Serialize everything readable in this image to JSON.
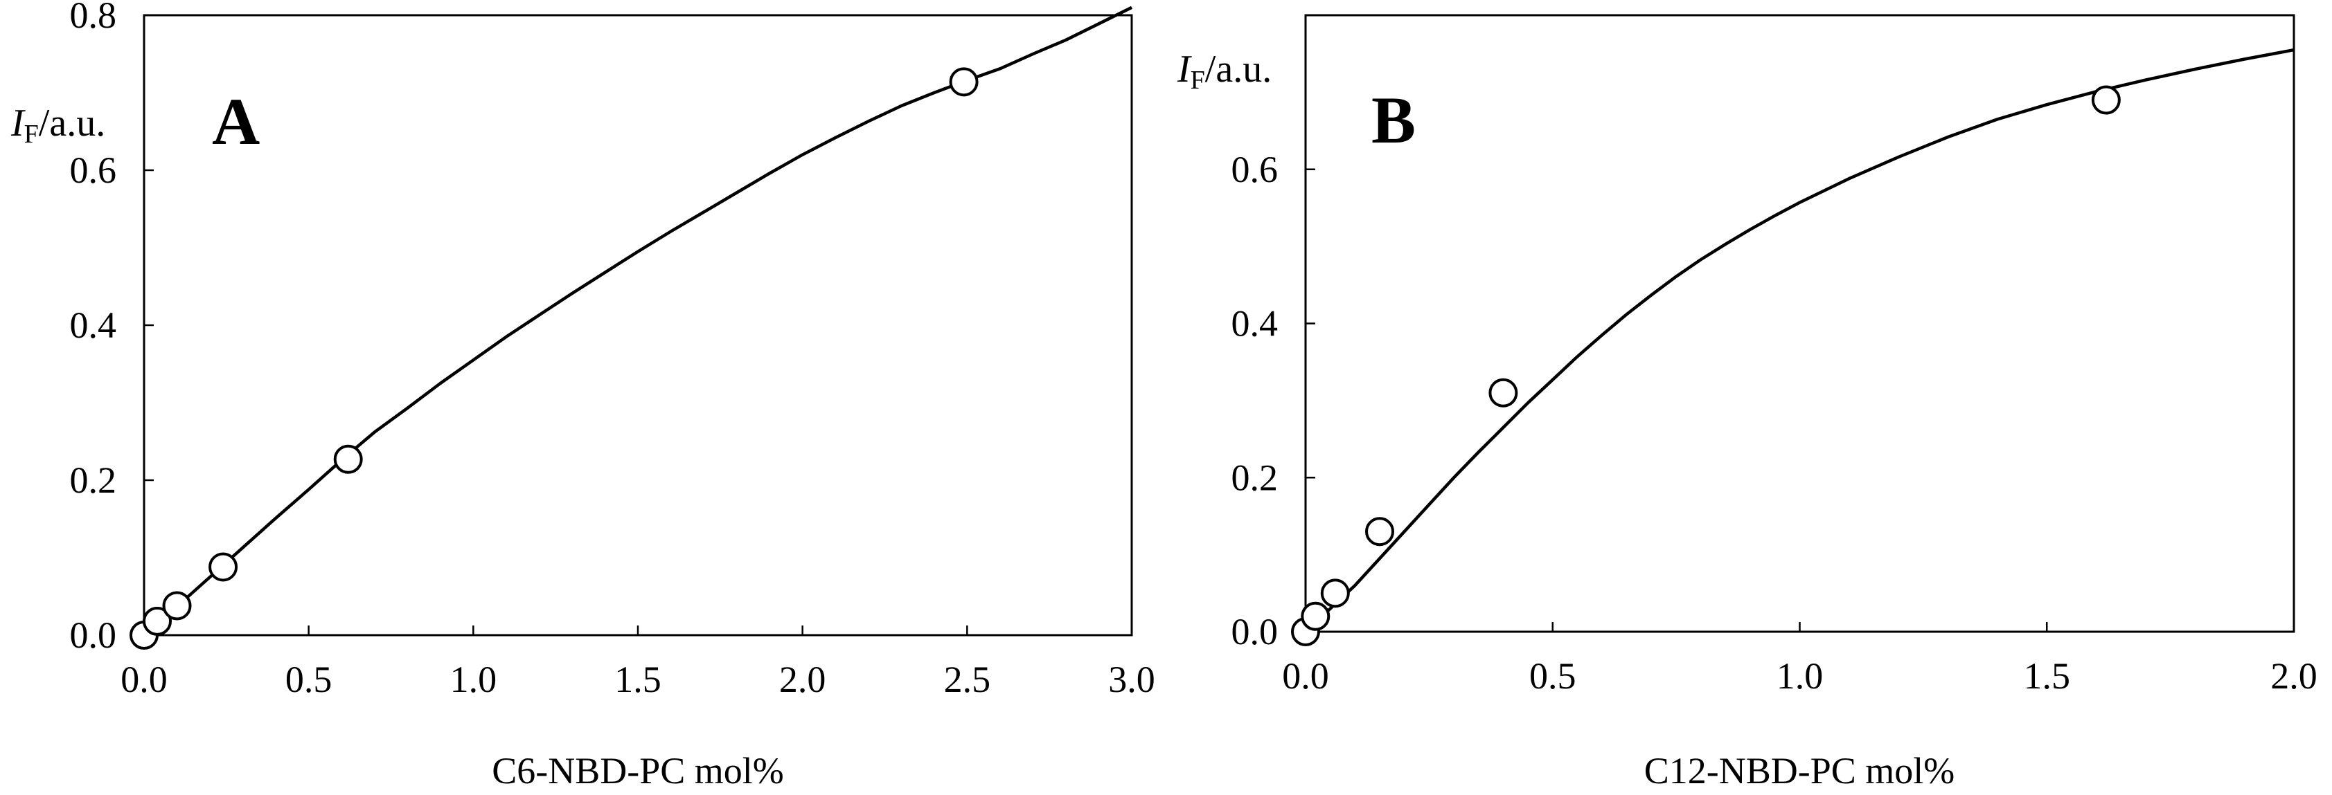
{
  "chart_data": [
    {
      "type": "scatter",
      "panel": "A",
      "xlabel": "C6-NBD-PC mol%",
      "ylabel_main": "I",
      "ylabel_sub": "F",
      "ylabel_unit": "/a.u.",
      "xlim": [
        0,
        3.0
      ],
      "ylim": [
        0,
        0.8
      ],
      "xticks": [
        0.0,
        0.5,
        1.0,
        1.5,
        2.0,
        2.5,
        3.0
      ],
      "xtick_labels": [
        "0.0",
        "0.5",
        "1.0",
        "1.5",
        "2.0",
        "2.5",
        "3.0"
      ],
      "yticks": [
        0.0,
        0.2,
        0.4,
        0.6,
        0.8
      ],
      "ytick_labels": [
        "0.0",
        "0.2",
        "0.4",
        "0.6",
        "0.8"
      ],
      "series": [
        {
          "kind": "points",
          "marker": "open-circle",
          "x": [
            0.0,
            0.04,
            0.1,
            0.24,
            0.62,
            2.49
          ],
          "y": [
            0.0,
            0.018,
            0.038,
            0.088,
            0.227,
            0.714
          ]
        },
        {
          "kind": "line",
          "x": [
            0.0,
            0.1,
            0.2,
            0.3,
            0.4,
            0.5,
            0.6,
            0.7,
            0.8,
            0.9,
            1.0,
            1.1,
            1.2,
            1.3,
            1.4,
            1.5,
            1.6,
            1.7,
            1.8,
            1.9,
            2.0,
            2.1,
            2.2,
            2.3,
            2.4,
            2.5,
            2.6,
            2.7,
            2.8,
            2.9,
            3.0
          ],
          "y": [
            0.0,
            0.037,
            0.075,
            0.113,
            0.151,
            0.188,
            0.226,
            0.262,
            0.293,
            0.325,
            0.355,
            0.385,
            0.413,
            0.441,
            0.468,
            0.495,
            0.521,
            0.546,
            0.571,
            0.596,
            0.62,
            0.642,
            0.663,
            0.683,
            0.7,
            0.716,
            0.731,
            0.75,
            0.768,
            0.789,
            0.81
          ]
        }
      ]
    },
    {
      "type": "scatter",
      "panel": "B",
      "xlabel": "C12-NBD-PC mol%",
      "ylabel_main": "I",
      "ylabel_sub": "F",
      "ylabel_unit": "/a.u.",
      "xlim": [
        0,
        2.0
      ],
      "ylim": [
        0,
        0.8
      ],
      "xticks": [
        0.0,
        0.5,
        1.0,
        1.5,
        2.0
      ],
      "xtick_labels": [
        "0.0",
        "0.5",
        "1.0",
        "1.5",
        "2.0"
      ],
      "yticks": [
        0.0,
        0.2,
        0.4,
        0.6
      ],
      "ytick_labels": [
        "0.0",
        "0.2",
        "0.4",
        "0.6"
      ],
      "series": [
        {
          "kind": "points",
          "marker": "open-circle",
          "x": [
            0.0,
            0.02,
            0.06,
            0.15,
            0.4,
            1.62
          ],
          "y": [
            0.0,
            0.02,
            0.05,
            0.13,
            0.31,
            0.69
          ]
        },
        {
          "kind": "line",
          "x": [
            0.0,
            0.05,
            0.1,
            0.15,
            0.2,
            0.25,
            0.3,
            0.35,
            0.4,
            0.45,
            0.5,
            0.55,
            0.6,
            0.65,
            0.7,
            0.75,
            0.8,
            0.85,
            0.9,
            0.95,
            1.0,
            1.1,
            1.2,
            1.3,
            1.4,
            1.5,
            1.6,
            1.7,
            1.8,
            1.9,
            2.0
          ],
          "y": [
            0.0,
            0.03,
            0.06,
            0.095,
            0.13,
            0.165,
            0.2,
            0.233,
            0.265,
            0.297,
            0.327,
            0.357,
            0.385,
            0.412,
            0.437,
            0.461,
            0.483,
            0.503,
            0.522,
            0.54,
            0.557,
            0.588,
            0.616,
            0.642,
            0.665,
            0.684,
            0.701,
            0.716,
            0.73,
            0.743,
            0.755
          ]
        }
      ]
    }
  ]
}
